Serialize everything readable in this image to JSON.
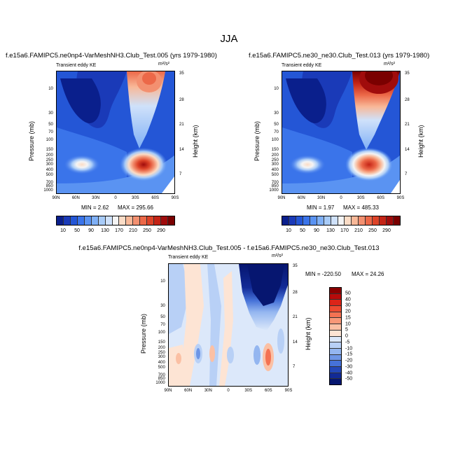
{
  "main_title": "JJA",
  "panels": [
    {
      "title": "f.e15a6.FAMIPC5.ne0np4-VarMeshNH3.Club_Test.005 (yrs 1979-1980)",
      "subtitle": "Transient eddy KE",
      "units": "m²/s²",
      "ylabel": "Pressure (mb)",
      "ylabel_right": "Height (km)",
      "min_text": "MIN =  2.62",
      "max_text": "MAX = 295.66"
    },
    {
      "title": "f.e15a6.FAMIPC5.ne30_ne30.Club_Test.013 (yrs 1979-1980)",
      "subtitle": "Transient eddy KE",
      "units": "m²/s²",
      "ylabel": "Pressure (mb)",
      "ylabel_right": "Height (km)",
      "min_text": "MIN =  1.97",
      "max_text": "MAX = 485.33"
    },
    {
      "title": "f.e15a6.FAMIPC5.ne0np4-VarMeshNH3.Club_Test.005 - f.e15a6.FAMIPC5.ne30_ne30.Club_Test.013",
      "subtitle": "Transient eddy KE",
      "units": "m²/s²",
      "ylabel": "Pressure (mb)",
      "ylabel_right": "Height (km)",
      "min_text": "MIN = -220.50",
      "max_text": "MAX =  24.26"
    }
  ],
  "x_ticks": [
    "90N",
    "60N",
    "30N",
    "0",
    "30S",
    "60S",
    "90S"
  ],
  "p_ticks": [
    "10",
    "30",
    "50",
    "70",
    "100",
    "150",
    "200",
    "250",
    "300",
    "400",
    "500",
    "700",
    "850",
    "1000"
  ],
  "h_ticks": [
    "35",
    "28",
    "21",
    "14",
    "7"
  ],
  "colorbar_main": {
    "labels": [
      "10",
      "50",
      "90",
      "130",
      "170",
      "210",
      "250",
      "290"
    ],
    "colors": [
      "#0a1f8c",
      "#1a3ab8",
      "#2456d6",
      "#3a74ea",
      "#5a93f2",
      "#7fb0f6",
      "#a8cbf8",
      "#cfe1fa",
      "#f4f4f4",
      "#fbdcc6",
      "#f8b898",
      "#f39070",
      "#ec6848",
      "#dd4328",
      "#c42416",
      "#a00c0c",
      "#7a0000"
    ]
  },
  "colorbar_diff": {
    "labels": [
      "50",
      "40",
      "30",
      "20",
      "15",
      "10",
      "5",
      "0",
      "-5",
      "-10",
      "-15",
      "-20",
      "-30",
      "-40",
      "-50"
    ],
    "colors": [
      "#8a0000",
      "#b80a0a",
      "#dc2418",
      "#ee4a30",
      "#f47252",
      "#f89878",
      "#fbc0a4",
      "#fde4d4",
      "#dce8fa",
      "#b8d0f6",
      "#94b6f0",
      "#6e96e6",
      "#4672d8",
      "#2448b8",
      "#122a96",
      "#061670"
    ]
  },
  "chart_data": [
    {
      "type": "heatmap",
      "title": "f.e15a6.FAMIPC5.ne0np4-VarMeshNH3.Club_Test.005 (yrs 1979-1980)",
      "subtitle": "Transient eddy KE",
      "units": "m²/s²",
      "xlabel": "",
      "ylabel": "Pressure (mb)",
      "ylabel_right": "Height (km)",
      "x_ticks": [
        "90N",
        "60N",
        "30N",
        "0",
        "30S",
        "60S",
        "90S"
      ],
      "y_ticks": [
        10,
        30,
        50,
        70,
        100,
        150,
        200,
        250,
        300,
        400,
        500,
        700,
        850,
        1000
      ],
      "y_right_ticks": [
        35,
        28,
        21,
        14,
        7
      ],
      "min": 2.62,
      "max": 295.66,
      "levels": [
        10,
        30,
        50,
        70,
        90,
        110,
        130,
        150,
        170,
        190,
        210,
        230,
        250,
        270,
        290
      ]
    },
    {
      "type": "heatmap",
      "title": "f.e15a6.FAMIPC5.ne30_ne30.Club_Test.013 (yrs 1979-1980)",
      "subtitle": "Transient eddy KE",
      "units": "m²/s²",
      "xlabel": "",
      "ylabel": "Pressure (mb)",
      "ylabel_right": "Height (km)",
      "x_ticks": [
        "90N",
        "60N",
        "30N",
        "0",
        "30S",
        "60S",
        "90S"
      ],
      "y_ticks": [
        10,
        30,
        50,
        70,
        100,
        150,
        200,
        250,
        300,
        400,
        500,
        700,
        850,
        1000
      ],
      "y_right_ticks": [
        35,
        28,
        21,
        14,
        7
      ],
      "min": 1.97,
      "max": 485.33,
      "levels": [
        10,
        30,
        50,
        70,
        90,
        110,
        130,
        150,
        170,
        190,
        210,
        230,
        250,
        270,
        290
      ]
    },
    {
      "type": "heatmap",
      "title": "f.e15a6.FAMIPC5.ne0np4-VarMeshNH3.Club_Test.005 - f.e15a6.FAMIPC5.ne30_ne30.Club_Test.013",
      "subtitle": "Transient eddy KE",
      "units": "m²/s²",
      "xlabel": "",
      "ylabel": "Pressure (mb)",
      "ylabel_right": "Height (km)",
      "x_ticks": [
        "90N",
        "60N",
        "30N",
        "0",
        "30S",
        "60S",
        "90S"
      ],
      "y_ticks": [
        10,
        30,
        50,
        70,
        100,
        150,
        200,
        250,
        300,
        400,
        500,
        700,
        850,
        1000
      ],
      "y_right_ticks": [
        35,
        28,
        21,
        14,
        7
      ],
      "min": -220.5,
      "max": 24.26,
      "levels": [
        -50,
        -40,
        -30,
        -20,
        -15,
        -10,
        -5,
        0,
        5,
        10,
        15,
        20,
        30,
        40,
        50
      ]
    }
  ]
}
